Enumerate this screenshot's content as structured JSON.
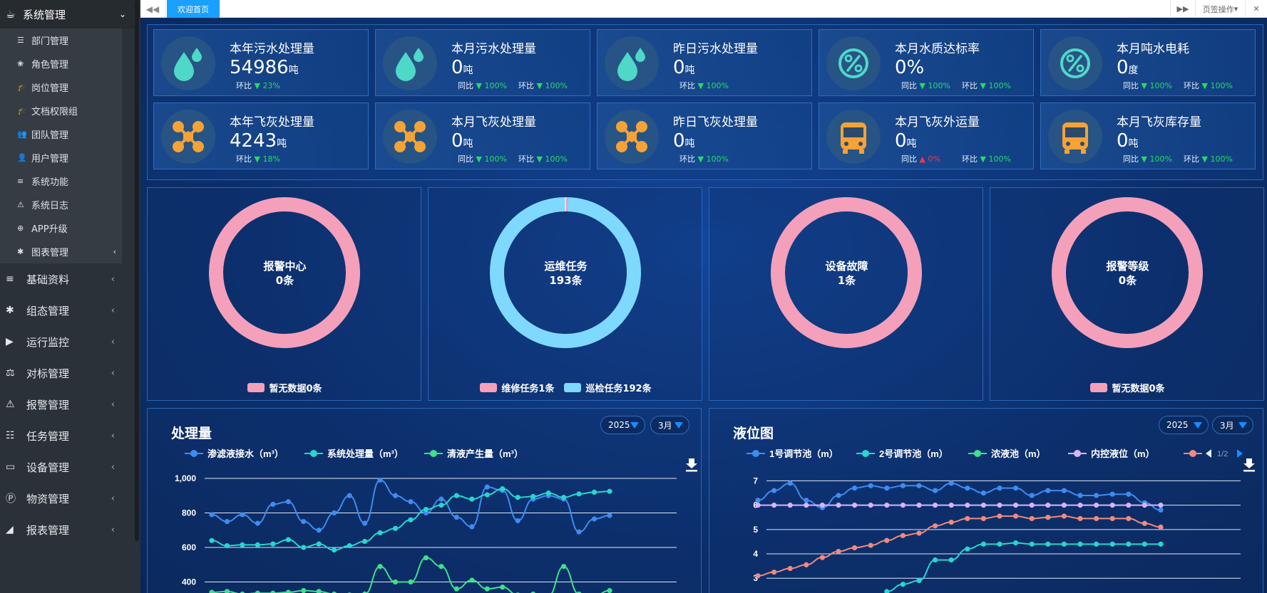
{
  "sidebar": {
    "top": {
      "label": "系统管理",
      "icon": "coffee-icon"
    },
    "sub_items": [
      {
        "label": "部门管理",
        "icon": "list-icon"
      },
      {
        "label": "角色管理",
        "icon": "paw-icon"
      },
      {
        "label": "岗位管理",
        "icon": "graduation-cap-icon"
      },
      {
        "label": "文档权限组",
        "icon": "graduation-cap-icon"
      },
      {
        "label": "团队管理",
        "icon": "users-icon"
      },
      {
        "label": "用户管理",
        "icon": "user-icon"
      },
      {
        "label": "系统功能",
        "icon": "bars-icon"
      },
      {
        "label": "系统日志",
        "icon": "warning-icon"
      },
      {
        "label": "APP升级",
        "icon": "upload-icon"
      },
      {
        "label": "图表管理",
        "icon": "asterisk-icon"
      }
    ],
    "items": [
      {
        "label": "基础资料",
        "icon": "bars-icon"
      },
      {
        "label": "组态管理",
        "icon": "asterisk-icon"
      },
      {
        "label": "运行监控",
        "icon": "video-icon"
      },
      {
        "label": "对标管理",
        "icon": "balance-icon"
      },
      {
        "label": "报警管理",
        "icon": "warning-icon"
      },
      {
        "label": "任务管理",
        "icon": "tasks-icon"
      },
      {
        "label": "设备管理",
        "icon": "desktop-icon"
      },
      {
        "label": "物资管理",
        "icon": "product-hunt-icon"
      },
      {
        "label": "报表管理",
        "icon": "area-chart-icon"
      }
    ]
  },
  "topbar": {
    "tab_label": "欢迎首页",
    "page_ops": "页签操作"
  },
  "stats": [
    {
      "title": "本年污水处理量",
      "value": "54986",
      "unit": "吨",
      "icon": "water-drop-icon",
      "cmp": [
        {
          "label": "环比",
          "dir": "down",
          "pct": "23%"
        }
      ]
    },
    {
      "title": "本月污水处理量",
      "value": "0",
      "unit": "吨",
      "icon": "water-drop-icon",
      "cmp": [
        {
          "label": "同比",
          "dir": "down",
          "pct": "100%"
        },
        {
          "label": "环比",
          "dir": "down",
          "pct": "100%"
        }
      ]
    },
    {
      "title": "昨日污水处理量",
      "value": "0",
      "unit": "吨",
      "icon": "water-drop-icon",
      "cmp": [
        {
          "label": "环比",
          "dir": "down",
          "pct": "100%"
        }
      ]
    },
    {
      "title": "本月水质达标率",
      "value": "0%",
      "unit": "",
      "icon": "percent-icon",
      "cmp": [
        {
          "label": "同比",
          "dir": "down",
          "pct": "100%"
        },
        {
          "label": "环比",
          "dir": "down",
          "pct": "100%"
        }
      ]
    },
    {
      "title": "本月吨水电耗",
      "value": "0",
      "unit": "度",
      "icon": "percent-icon",
      "cmp": [
        {
          "label": "同比",
          "dir": "down",
          "pct": "100%"
        },
        {
          "label": "环比",
          "dir": "down",
          "pct": "100%"
        }
      ]
    },
    {
      "title": "本年飞灰处理量",
      "value": "4243",
      "unit": "吨",
      "icon": "molecule-icon",
      "cmp": [
        {
          "label": "环比",
          "dir": "down",
          "pct": "18%"
        }
      ]
    },
    {
      "title": "本月飞灰处理量",
      "value": "0",
      "unit": "吨",
      "icon": "molecule-icon",
      "cmp": [
        {
          "label": "同比",
          "dir": "down",
          "pct": "100%"
        },
        {
          "label": "环比",
          "dir": "down",
          "pct": "100%"
        }
      ]
    },
    {
      "title": "昨日飞灰处理量",
      "value": "0",
      "unit": "吨",
      "icon": "molecule-icon",
      "cmp": [
        {
          "label": "环比",
          "dir": "down",
          "pct": "100%"
        }
      ]
    },
    {
      "title": "本月飞灰外运量",
      "value": "0",
      "unit": "吨",
      "icon": "bus-icon",
      "cmp": [
        {
          "label": "同比",
          "dir": "up",
          "pct": "0%"
        },
        {
          "label": "环比",
          "dir": "down",
          "pct": "100%"
        }
      ]
    },
    {
      "title": "本月飞灰库存量",
      "value": "0",
      "unit": "吨",
      "icon": "bus-icon",
      "cmp": [
        {
          "label": "同比",
          "dir": "down",
          "pct": "100%"
        },
        {
          "label": "环比",
          "dir": "down",
          "pct": "100%"
        }
      ]
    }
  ],
  "donuts": [
    {
      "name": "报警中心",
      "count": "0条",
      "slices": [
        {
          "value": 0,
          "color": "#f4a0bb"
        }
      ],
      "empty_color": "#f4a0bb",
      "legend": [
        {
          "label": "暂无数据0条",
          "color": "#f4a0bb"
        }
      ]
    },
    {
      "name": "运维任务",
      "count": "193条",
      "slices": [
        {
          "value": 1,
          "color": "#f4a0bb"
        },
        {
          "value": 192,
          "color": "#7fd9ff"
        }
      ],
      "empty_color": "#7fd9ff",
      "legend": [
        {
          "label": "维修任务1条",
          "color": "#f4a0bb"
        },
        {
          "label": "巡检任务192条",
          "color": "#7fd9ff"
        }
      ]
    },
    {
      "name": "设备故障",
      "count": "1条",
      "slices": [
        {
          "value": 1,
          "color": "#f4a0bb"
        }
      ],
      "empty_color": "#f4a0bb",
      "legend": []
    },
    {
      "name": "报警等级",
      "count": "0条",
      "slices": [
        {
          "value": 0,
          "color": "#f4a0bb"
        }
      ],
      "empty_color": "#f4a0bb",
      "legend": [
        {
          "label": "暂无数据0条",
          "color": "#f4a0bb"
        }
      ]
    }
  ],
  "chart1": {
    "title": "处理量",
    "year": "2025",
    "month": "3月"
  },
  "chart2": {
    "title": "液位图",
    "year": "2025",
    "month": "3月",
    "pager": "1/2"
  },
  "chart_data": [
    {
      "type": "line",
      "title": "处理量",
      "ylim": [
        300,
        1000
      ],
      "yticks": [
        "1,000",
        "800",
        "600",
        "400"
      ],
      "ytick_values": [
        1000,
        800,
        600,
        400
      ],
      "series": [
        {
          "name": "渗滤液接水（m³）",
          "color": "#3f8cf0",
          "values": [
            790,
            750,
            790,
            740,
            850,
            865,
            750,
            700,
            800,
            900,
            740,
            990,
            900,
            865,
            800,
            880,
            775,
            720,
            950,
            930,
            755,
            880,
            900,
            880,
            690,
            765,
            785
          ]
        },
        {
          "name": "系统处理量（m³）",
          "color": "#28d6cf",
          "values": [
            640,
            610,
            615,
            615,
            620,
            645,
            600,
            620,
            585,
            610,
            635,
            685,
            710,
            760,
            820,
            845,
            900,
            880,
            905,
            940,
            890,
            895,
            915,
            890,
            910,
            920,
            925
          ]
        },
        {
          "name": "清液产生量（m³）",
          "color": "#3ee08c",
          "values": [
            340,
            345,
            330,
            335,
            335,
            340,
            350,
            345,
            330,
            325,
            330,
            490,
            400,
            400,
            540,
            490,
            360,
            410,
            360,
            370,
            325,
            330,
            320,
            490,
            330,
            320,
            350
          ]
        }
      ]
    },
    {
      "type": "line",
      "title": "液位图",
      "ylim": [
        2.7,
        7.1
      ],
      "yticks": [
        "7",
        "6",
        "5",
        "4",
        "3"
      ],
      "ytick_values": [
        7,
        6,
        5,
        4,
        3
      ],
      "series": [
        {
          "name": "1号调节池（m）",
          "color": "#3f8cf0",
          "values": [
            6.2,
            6.6,
            6.9,
            6.2,
            5.9,
            6.4,
            6.7,
            6.8,
            6.7,
            6.8,
            6.8,
            6.6,
            6.9,
            6.7,
            6.5,
            6.7,
            6.7,
            6.4,
            6.6,
            6.6,
            6.4,
            6.4,
            6.45,
            6.45,
            6.1,
            5.8
          ]
        },
        {
          "name": "2号调节池（m）",
          "color": "#28d6cf",
          "values": [
            null,
            null,
            null,
            null,
            null,
            null,
            null,
            null,
            2.45,
            2.75,
            2.9,
            3.75,
            3.75,
            4.2,
            4.4,
            4.4,
            4.45,
            4.4,
            4.4,
            4.4,
            4.4,
            4.4,
            4.4,
            4.4,
            4.4,
            4.4
          ]
        },
        {
          "name": "浓液池（m）",
          "color": "#3ee08c",
          "values": []
        },
        {
          "name": "内控液位（m）",
          "color": "#d9b3ff",
          "values": [
            6,
            6,
            6,
            6,
            6,
            6,
            6,
            6,
            6,
            6,
            6,
            6,
            6,
            6,
            6,
            6,
            6,
            6,
            6,
            6,
            6,
            6,
            6,
            6,
            6,
            6
          ]
        },
        {
          "name": "",
          "color": "#f08a80",
          "values": [
            3.1,
            3.25,
            3.4,
            3.55,
            3.85,
            4.1,
            4.25,
            4.35,
            4.55,
            4.75,
            4.85,
            5.15,
            5.3,
            5.45,
            5.45,
            5.55,
            5.55,
            5.45,
            5.5,
            5.55,
            5.45,
            5.45,
            5.45,
            5.45,
            5.25,
            5.1
          ]
        }
      ]
    }
  ]
}
